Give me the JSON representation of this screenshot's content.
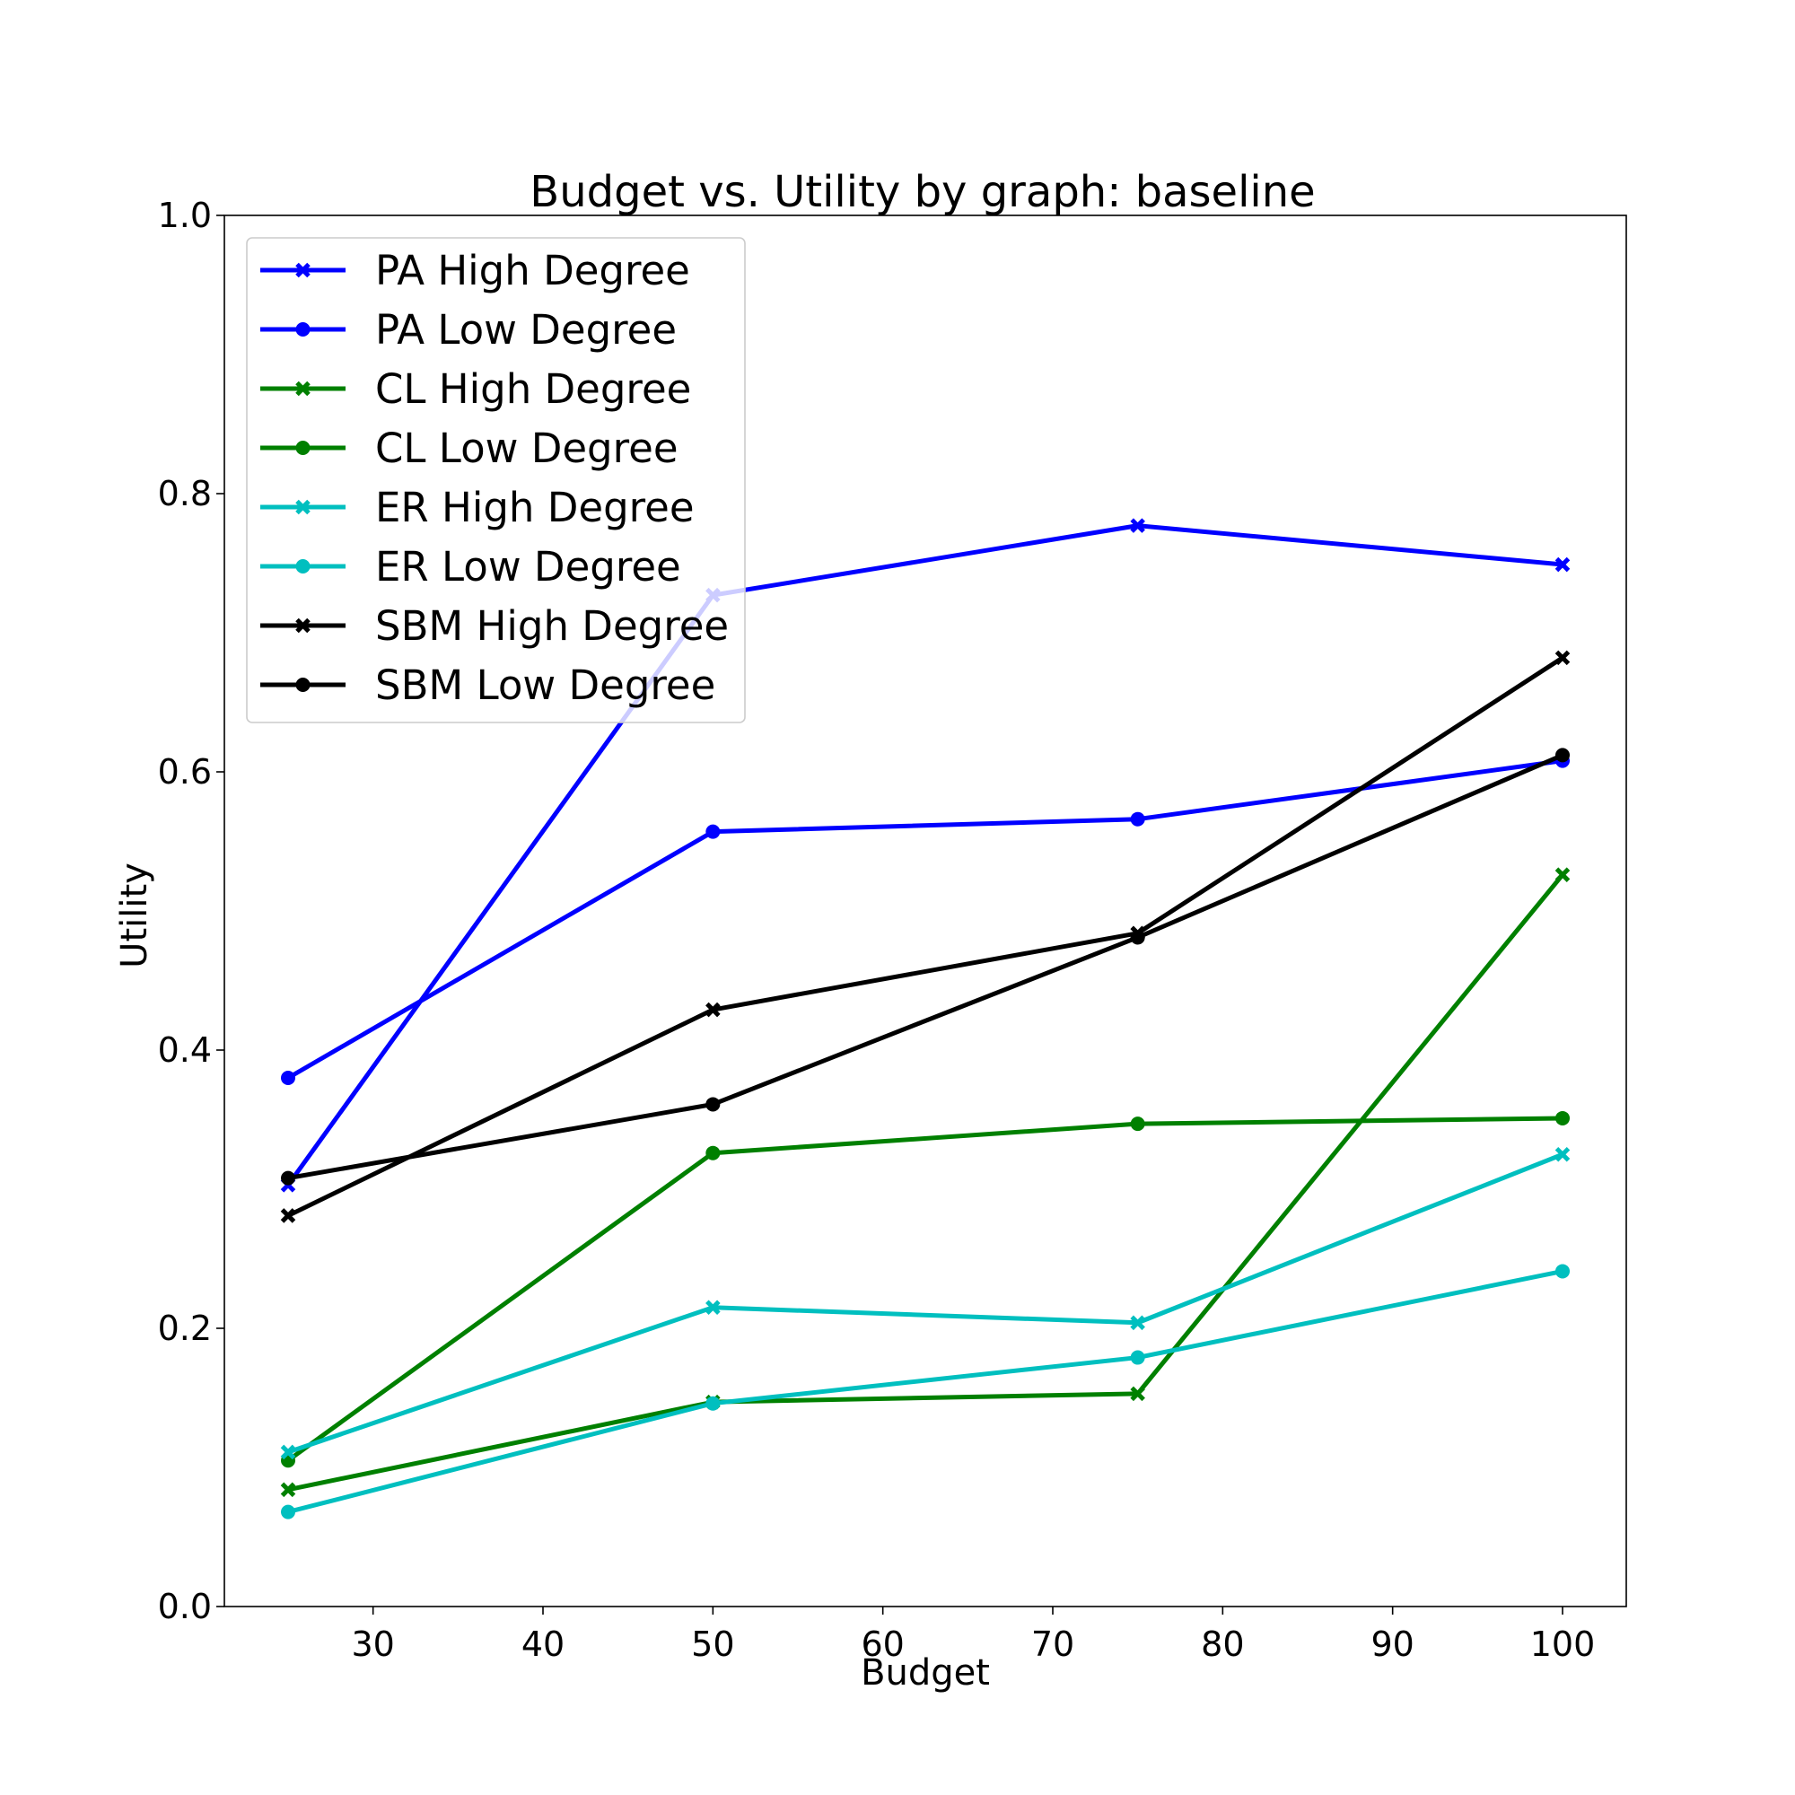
{
  "chart_data": {
    "type": "line",
    "title": "Budget vs. Utility by graph: baseline",
    "xlabel": "Budget",
    "ylabel": "Utility",
    "xlim": [
      21.25,
      103.75
    ],
    "ylim": [
      0.0,
      1.0
    ],
    "xticks": [
      30,
      40,
      50,
      60,
      70,
      80,
      90,
      100
    ],
    "xtick_labels": [
      "30",
      "40",
      "50",
      "60",
      "70",
      "80",
      "90",
      "100"
    ],
    "yticks": [
      0.0,
      0.2,
      0.4,
      0.6,
      0.8,
      1.0
    ],
    "ytick_labels": [
      "0.0",
      "0.2",
      "0.4",
      "0.6",
      "0.8",
      "1.0"
    ],
    "grid": false,
    "legend_position": "upper-left",
    "x": [
      25,
      50,
      75,
      100
    ],
    "series": [
      {
        "name": "PA High Degree",
        "color": "#0000ff",
        "marker": "x",
        "values": [
          0.303,
          0.727,
          0.777,
          0.749
        ]
      },
      {
        "name": "PA Low Degree",
        "color": "#0000ff",
        "marker": "o",
        "values": [
          0.38,
          0.557,
          0.566,
          0.608
        ]
      },
      {
        "name": "CL High Degree",
        "color": "#008000",
        "marker": "x",
        "values": [
          0.084,
          0.147,
          0.153,
          0.526
        ]
      },
      {
        "name": "CL Low Degree",
        "color": "#008000",
        "marker": "o",
        "values": [
          0.105,
          0.326,
          0.347,
          0.351
        ]
      },
      {
        "name": "ER High Degree",
        "color": "#00bfbf",
        "marker": "x",
        "values": [
          0.111,
          0.215,
          0.204,
          0.325
        ]
      },
      {
        "name": "ER Low Degree",
        "color": "#00bfbf",
        "marker": "o",
        "values": [
          0.068,
          0.146,
          0.179,
          0.241
        ]
      },
      {
        "name": "SBM High Degree",
        "color": "#000000",
        "marker": "x",
        "values": [
          0.281,
          0.429,
          0.484,
          0.682
        ]
      },
      {
        "name": "SBM Low Degree",
        "color": "#000000",
        "marker": "o",
        "values": [
          0.308,
          0.361,
          0.481,
          0.612
        ]
      }
    ]
  }
}
